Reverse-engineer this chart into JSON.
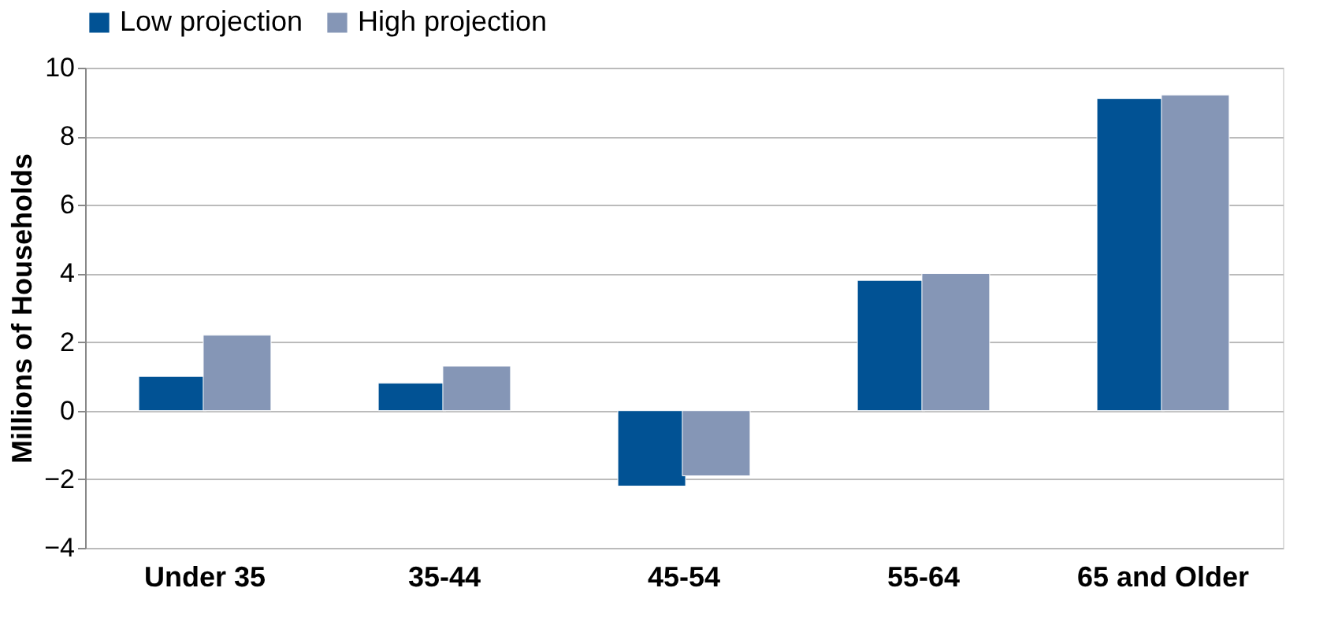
{
  "chart_data": {
    "type": "bar",
    "ylabel": "Millions of Households",
    "categories": [
      "Under 35",
      "35-44",
      "45-54",
      "55-64",
      "65 and Older"
    ],
    "series": [
      {
        "name": "Low projection",
        "color": "#015294",
        "values": [
          1.0,
          0.8,
          -2.2,
          3.8,
          9.1
        ]
      },
      {
        "name": "High projection",
        "color": "#8596b6",
        "values": [
          2.2,
          1.3,
          -1.9,
          4.0,
          9.2
        ]
      }
    ],
    "ylim": [
      -4,
      10
    ],
    "yticks": [
      -4,
      -2,
      0,
      2,
      4,
      6,
      8,
      10
    ],
    "grid": "y",
    "legend": "top"
  }
}
